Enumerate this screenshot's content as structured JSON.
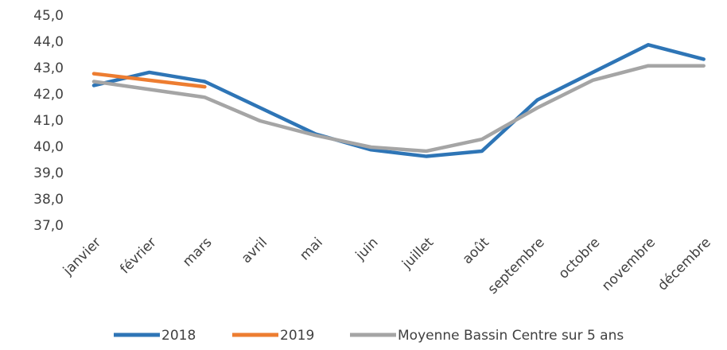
{
  "chart_data": {
    "type": "line",
    "categories": [
      "janvier",
      "février",
      "mars",
      "avril",
      "mai",
      "juin",
      "juillet",
      "août",
      "septembre",
      "octobre",
      "novembre",
      "décembre"
    ],
    "series": [
      {
        "name": "2018",
        "color": "#2e75b6",
        "values": [
          42.35,
          42.85,
          42.5,
          41.5,
          40.5,
          39.9,
          39.65,
          39.85,
          41.8,
          42.85,
          43.9,
          43.35
        ]
      },
      {
        "name": "2019",
        "color": "#ed7d31",
        "values": [
          42.8,
          42.55,
          42.3,
          null,
          null,
          null,
          null,
          null,
          null,
          null,
          null,
          null
        ]
      },
      {
        "name": "Moyenne Bassin Centre sur 5 ans",
        "color": "#a5a5a5",
        "values": [
          42.5,
          42.2,
          41.9,
          41.0,
          40.45,
          40.0,
          39.85,
          40.3,
          41.5,
          42.55,
          43.1,
          43.1
        ]
      }
    ],
    "ylim": [
      37,
      45
    ],
    "yticks": [
      {
        "value": 37,
        "label": "37,0"
      },
      {
        "value": 38,
        "label": "38,0"
      },
      {
        "value": 39,
        "label": "39,0"
      },
      {
        "value": 40,
        "label": "40,0"
      },
      {
        "value": 41,
        "label": "41,0"
      },
      {
        "value": 42,
        "label": "42,0"
      },
      {
        "value": 43,
        "label": "43,0"
      },
      {
        "value": 44,
        "label": "44,0"
      },
      {
        "value": 45,
        "label": "45,0"
      }
    ],
    "grid": false,
    "legend": "bottom"
  }
}
